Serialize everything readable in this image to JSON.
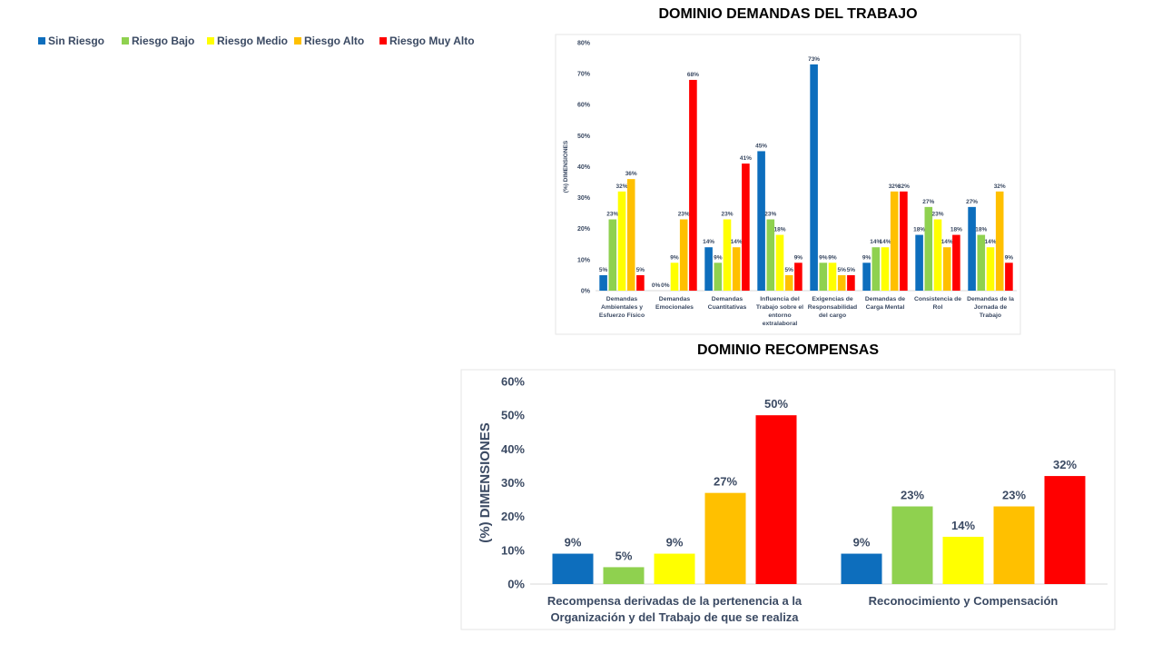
{
  "legend": [
    {
      "name": "Sin Riesgo",
      "color": "#0d6ebd"
    },
    {
      "name": "Riesgo Bajo",
      "color": "#8fd14f"
    },
    {
      "name": "Riesgo Medio",
      "color": "#ffff00"
    },
    {
      "name": "Riesgo Alto",
      "color": "#ffc000"
    },
    {
      "name": "Riesgo Muy Alto",
      "color": "#ff0000"
    }
  ],
  "chart_data": [
    {
      "type": "bar",
      "title": "DOMINIO DEMANDAS DEL TRABAJO",
      "ylabel": "(%) DIMENSIONES",
      "ylim": [
        0,
        80
      ],
      "yticks": [
        "0%",
        "10%",
        "20%",
        "30%",
        "40%",
        "50%",
        "60%",
        "70%",
        "80%"
      ],
      "categories": [
        [
          "Demandas",
          "Ambientales y",
          "Esfuerzo Físico"
        ],
        [
          "Demandas",
          "Emocionales"
        ],
        [
          "Demandas",
          "Cuantitativas"
        ],
        [
          "Influencia del",
          "Trabajo sobre el",
          "entorno",
          "extralaboral"
        ],
        [
          "Exigencias de",
          "Responsabilidad",
          "del cargo"
        ],
        [
          "Demandas de",
          "Carga Mental"
        ],
        [
          "Consistencia de",
          "Rol"
        ],
        [
          "Demandas de la",
          "Jornada de",
          "Trabajo"
        ]
      ],
      "series": [
        {
          "name": "Sin Riesgo",
          "values": [
            5,
            0,
            14,
            45,
            73,
            9,
            18,
            27
          ]
        },
        {
          "name": "Riesgo Bajo",
          "values": [
            23,
            0,
            9,
            23,
            9,
            14,
            27,
            18
          ]
        },
        {
          "name": "Riesgo Medio",
          "values": [
            32,
            9,
            23,
            18,
            9,
            14,
            23,
            14
          ]
        },
        {
          "name": "Riesgo Alto",
          "values": [
            36,
            23,
            14,
            5,
            5,
            32,
            14,
            32
          ]
        },
        {
          "name": "Riesgo Muy Alto",
          "values": [
            5,
            68,
            41,
            9,
            5,
            32,
            18,
            9
          ]
        }
      ],
      "grid": false,
      "legend": "top-left"
    },
    {
      "type": "bar",
      "title": "DOMINIO RECOMPENSAS",
      "ylabel": "(%) DIMENSIONES",
      "ylim": [
        0,
        60
      ],
      "yticks": [
        "0%",
        "10%",
        "20%",
        "30%",
        "40%",
        "50%",
        "60%"
      ],
      "categories": [
        [
          "Recompensa derivadas de la pertenencia a la",
          "Organización y del Trabajo de que se realiza"
        ],
        [
          "Reconocimiento y Compensación"
        ]
      ],
      "series": [
        {
          "name": "Sin Riesgo",
          "values": [
            9,
            9
          ]
        },
        {
          "name": "Riesgo Bajo",
          "values": [
            5,
            23
          ]
        },
        {
          "name": "Riesgo Medio",
          "values": [
            9,
            14
          ]
        },
        {
          "name": "Riesgo Alto",
          "values": [
            27,
            23
          ]
        },
        {
          "name": "Riesgo Muy Alto",
          "values": [
            50,
            32
          ]
        }
      ],
      "grid": false,
      "legend": "top-left"
    }
  ]
}
